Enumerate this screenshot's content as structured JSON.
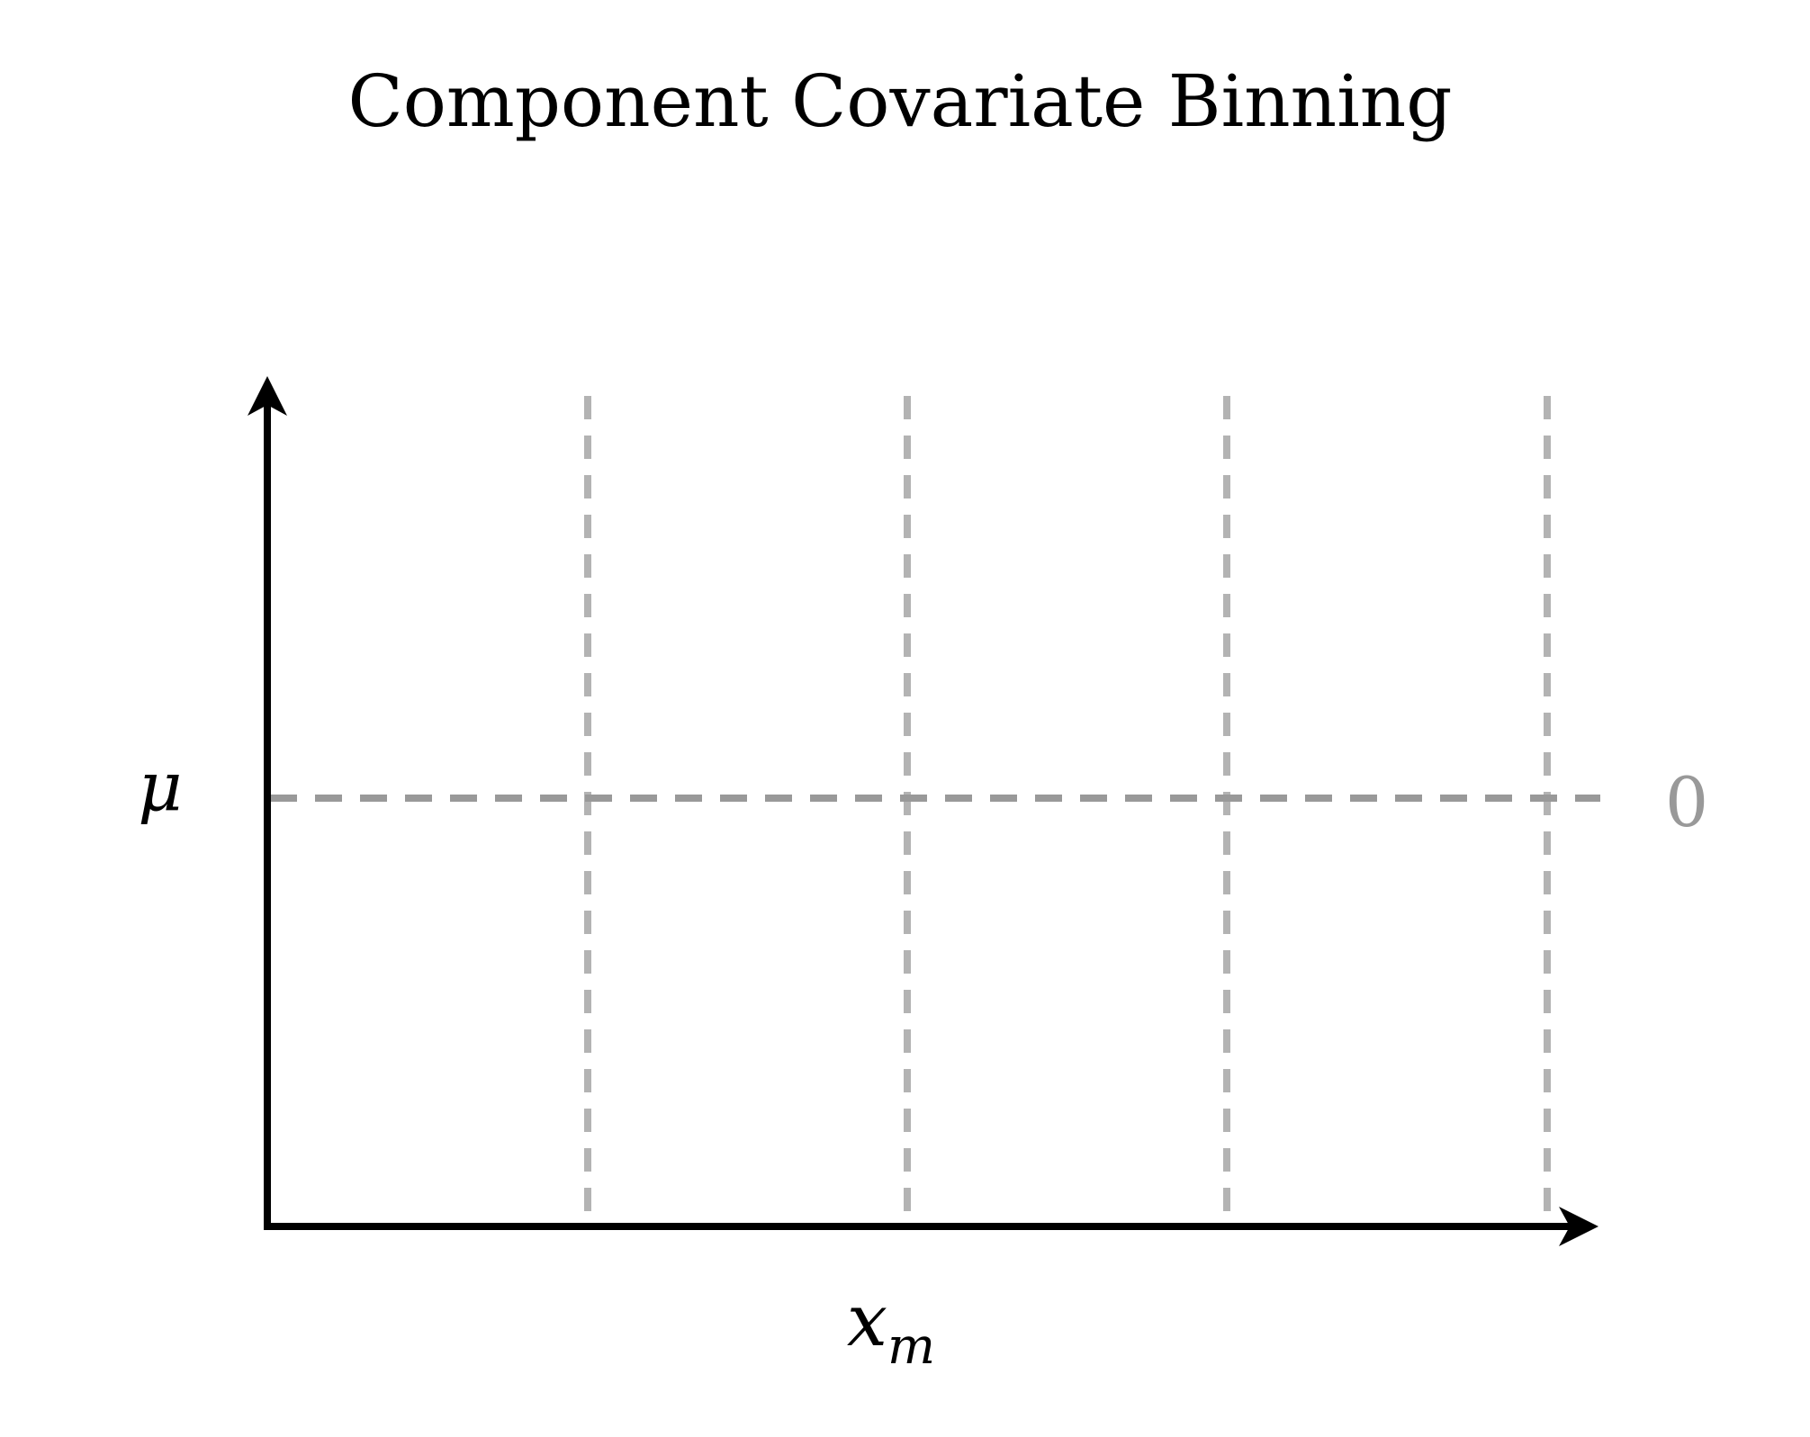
{
  "title": "Component Covariate Binning",
  "axes": {
    "y_label": "μ",
    "x_label_base": "x",
    "x_label_sub": "m"
  },
  "zero_line": {
    "label": "0",
    "color": "#999999"
  },
  "bin_boundaries": {
    "count": 4,
    "color": "#b3b3b3"
  },
  "axis_color": "#000000"
}
